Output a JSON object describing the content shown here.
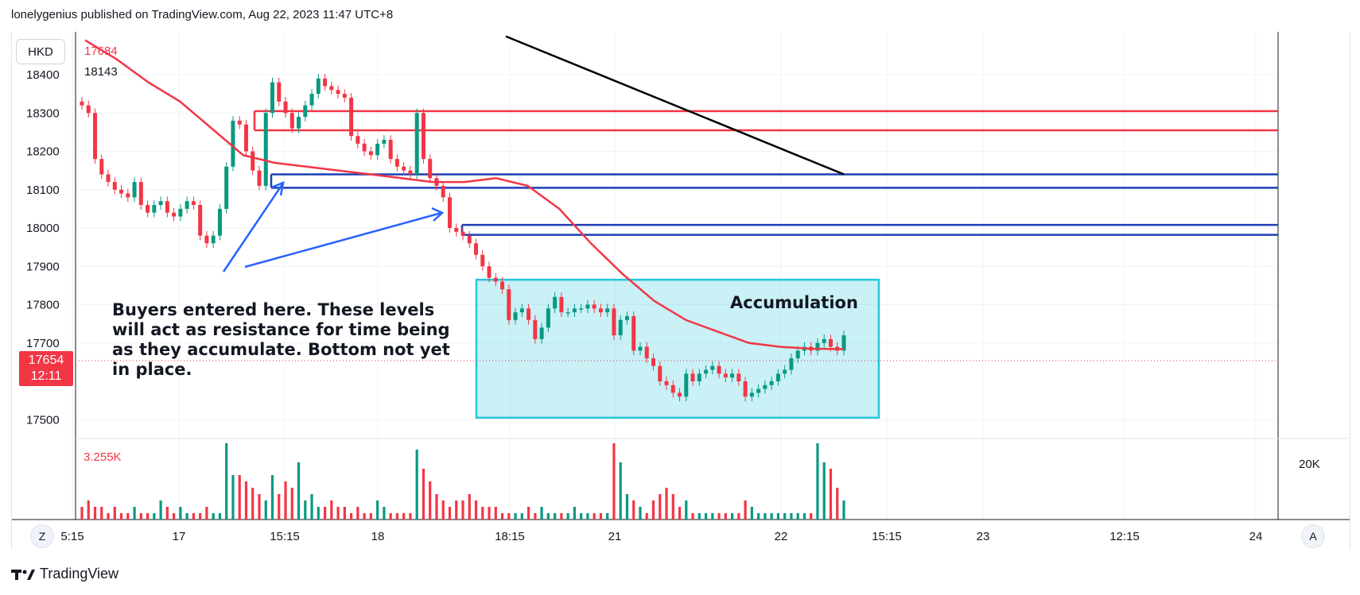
{
  "header": {
    "text": "lonelygenius published on TradingView.com, Aug 22, 2023 11:47 UTC+8"
  },
  "footer": {
    "brand": "TradingView"
  },
  "legend": {
    "symbol": "HKD",
    "ma_value": "17684",
    "ma2_value": "18143",
    "volume_value": "3.255K"
  },
  "last_price": {
    "price": "17654",
    "countdown": "12:11",
    "color": "#f23645"
  },
  "buttons": {
    "left_scale": "Z",
    "auto_scale": "A"
  },
  "annotations": {
    "note": "Buyers entered here. These levels will act as resistance for time being as they accumulate. Bottom not yet in place.",
    "accumulation": "Accumulation"
  },
  "chart_data": {
    "type": "candlestick",
    "price_axis": {
      "ticks": [
        18400,
        18300,
        18200,
        18100,
        18000,
        17900,
        17800,
        17700,
        17500
      ]
    },
    "volume_axis": {
      "ticks_label": "20K"
    },
    "x_ticks": [
      "5:15",
      "17",
      "15:15",
      "18",
      "18:15",
      "21",
      "22",
      "15:15",
      "23",
      "12:15",
      "24"
    ],
    "colors": {
      "up": "#089981",
      "down": "#f23645",
      "ma": "#f23645",
      "trend": "#000000",
      "support": "#1e3fb4",
      "resistance": "#f23645",
      "zone": "#26c6da"
    },
    "resistance_levels": [
      18305,
      18255
    ],
    "support_levels": [
      18140,
      18105,
      18008,
      17982
    ],
    "accumulation_zone": {
      "price_top": 17865,
      "price_bottom": 17505
    },
    "trendline": {
      "from_price": 18500,
      "to_price": 18140
    },
    "series": [
      {
        "name": "",
        "values": [
          18320,
          18300,
          18180,
          18140,
          18120,
          18100,
          18090,
          18080,
          18120,
          18060,
          18040,
          18060,
          18070,
          18040,
          18030,
          18050,
          18070,
          18060,
          17980,
          17960,
          17980,
          18050,
          18160,
          18280,
          18270,
          18200,
          18150,
          18110,
          18300,
          18380,
          18330,
          18300,
          18260,
          18290,
          18320,
          18350,
          18390,
          18370,
          18360,
          18350,
          18340,
          18240,
          18220,
          18200,
          18190,
          18220,
          18230,
          18180,
          18160,
          18150,
          18140,
          18300,
          18180,
          18130,
          18110,
          18080,
          18000,
          17990,
          17980,
          17960,
          17930,
          17900,
          17870,
          17860,
          17840,
          17760,
          17780,
          17790,
          17760,
          17710,
          17740,
          17790,
          17820,
          17780,
          17780,
          17790,
          17790,
          17800,
          17790,
          17780,
          17790,
          17720,
          17760,
          17770,
          17680,
          17690,
          17660,
          17640,
          17600,
          17590,
          17570,
          17560,
          17620,
          17600,
          17620,
          17630,
          17640,
          17620,
          17610,
          17620,
          17600,
          17560,
          17570,
          17580,
          17590,
          17600,
          17620,
          17630,
          17660,
          17680,
          17690,
          17680,
          17700,
          17710,
          17690,
          17680,
          17720
        ]
      },
      {
        "name": "",
        "values": [
          2,
          3,
          2,
          2,
          1,
          2,
          1,
          1,
          2,
          1,
          1,
          1,
          3,
          2,
          1,
          2,
          1,
          1,
          1,
          2,
          1,
          1,
          12,
          7,
          7,
          6,
          5,
          4,
          3,
          7,
          4,
          6,
          5,
          9,
          3,
          4,
          2,
          2,
          3,
          2,
          2,
          1,
          2,
          1,
          1,
          3,
          2,
          1,
          1,
          1,
          1,
          11,
          8,
          6,
          4,
          3,
          2,
          3,
          3,
          4,
          3,
          2,
          2,
          2,
          1,
          1,
          1,
          1,
          2,
          1,
          2,
          1,
          1,
          1,
          1,
          2,
          1,
          1,
          1,
          1,
          1,
          12,
          9,
          4,
          3,
          2,
          1,
          3,
          4,
          5,
          4,
          2,
          3,
          1,
          1,
          1,
          1,
          1,
          1,
          1,
          1,
          3,
          2,
          1,
          1,
          1,
          1,
          1,
          1,
          1,
          1,
          1,
          12,
          9,
          8,
          5,
          3
        ]
      }
    ],
    "ma_path_prices": [
      18490,
      18440,
      18380,
      18330,
      18260,
      18190,
      18170,
      18160,
      18150,
      18140,
      18130,
      18120,
      18120,
      18130,
      18110,
      18050,
      17960,
      17880,
      17810,
      17760,
      17730,
      17700,
      17690,
      17685,
      17684
    ]
  }
}
